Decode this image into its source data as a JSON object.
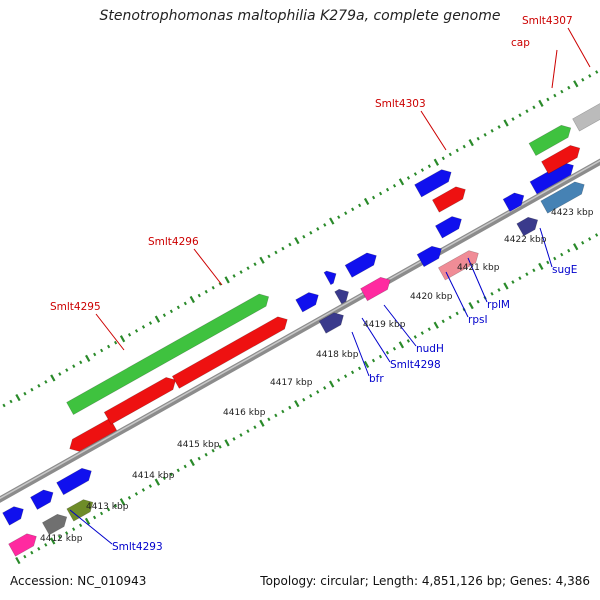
{
  "title": "Stenotrophomonas maltophilia K279a, complete genome",
  "footer": {
    "accession_label": "Accession:",
    "accession": "NC_010943",
    "topology_label": "Topology:",
    "topology": "circular",
    "length_label": "Length:",
    "length": "4,851,126 bp",
    "genes_label": "Genes:",
    "genes": "4,386"
  },
  "colors": {
    "backbone": "#8c8c8c",
    "tick": "#2a8a2a",
    "green_gene": "#3fc23f",
    "red_gene": "#ee1111",
    "blue_gene": "#1010ee",
    "navy_gene": "#3a3a8c",
    "pink_gene": "#ff2aa0",
    "lightpink_gene": "#f08c96",
    "grey_gene": "#bbbbbb",
    "darkgrey_gene": "#707070",
    "olive_gene": "#6e8c28",
    "steel_gene": "#4682b4",
    "label_red": "#cc0000",
    "label_blue": "#0000cc",
    "kbp_text": "#222222"
  },
  "kbp_labels": [
    "4412 kbp",
    "4413 kbp",
    "4414 kbp",
    "4415 kbp",
    "4416 kbp",
    "4417 kbp",
    "4418 kbp",
    "4419 kbp",
    "4420 kbp",
    "4421 kbp",
    "4422 kbp",
    "4423 kbp"
  ],
  "upper_labels": [
    "Smlt4295",
    "Smlt4296",
    "Smlt4303",
    "cap",
    "Smlt4307"
  ],
  "lower_labels": [
    "Smlt4293",
    "bfr",
    "Smlt4298",
    "nudH",
    "rpsI",
    "rplM",
    "sugE"
  ]
}
